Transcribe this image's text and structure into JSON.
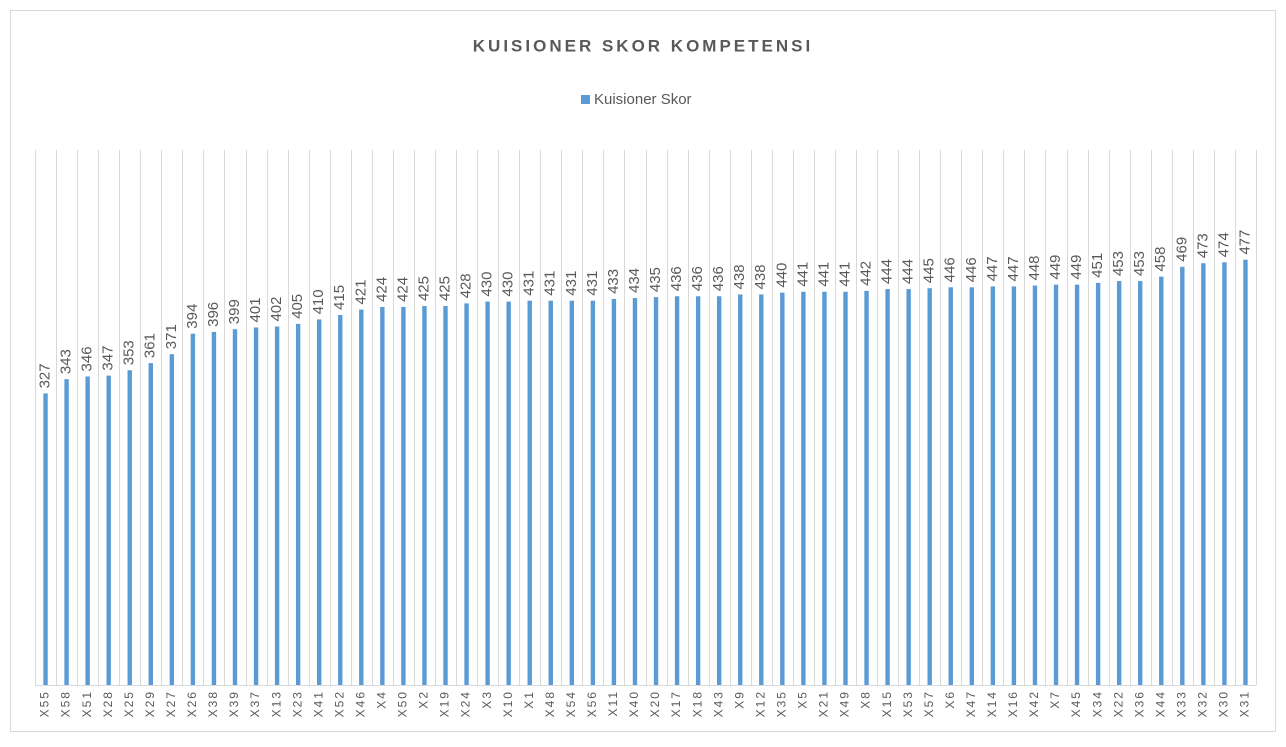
{
  "chart_data": {
    "type": "bar",
    "title": "KUISIONER SKOR KOMPETENSI",
    "series": [
      {
        "name": "Kuisioner Skor",
        "color": "#5b9bd5",
        "values": [
          327,
          343,
          346,
          347,
          353,
          361,
          371,
          394,
          396,
          399,
          401,
          402,
          405,
          410,
          415,
          421,
          424,
          424,
          425,
          425,
          428,
          430,
          430,
          431,
          431,
          431,
          431,
          433,
          434,
          435,
          436,
          436,
          436,
          438,
          438,
          440,
          441,
          441,
          441,
          442,
          444,
          444,
          445,
          446,
          446,
          447,
          447,
          448,
          449,
          449,
          451,
          453,
          453,
          458,
          469,
          473,
          474,
          477
        ]
      }
    ],
    "categories": [
      "X55",
      "X58",
      "X51",
      "X28",
      "X25",
      "X29",
      "X27",
      "X26",
      "X38",
      "X39",
      "X37",
      "X13",
      "X23",
      "X41",
      "X52",
      "X46",
      "X4",
      "X50",
      "X2",
      "X19",
      "X24",
      "X3",
      "X10",
      "X1",
      "X48",
      "X54",
      "X56",
      "X11",
      "X40",
      "X20",
      "X17",
      "X18",
      "X43",
      "X9",
      "X12",
      "X35",
      "X5",
      "X21",
      "X49",
      "X8",
      "X15",
      "X53",
      "X57",
      "X6",
      "X47",
      "X14",
      "X16",
      "X42",
      "X7",
      "X45",
      "X34",
      "X22",
      "X36",
      "X44",
      "X33",
      "X32",
      "X30",
      "X31"
    ],
    "ylim": [
      0,
      600
    ],
    "grid": true,
    "legend": "top"
  }
}
